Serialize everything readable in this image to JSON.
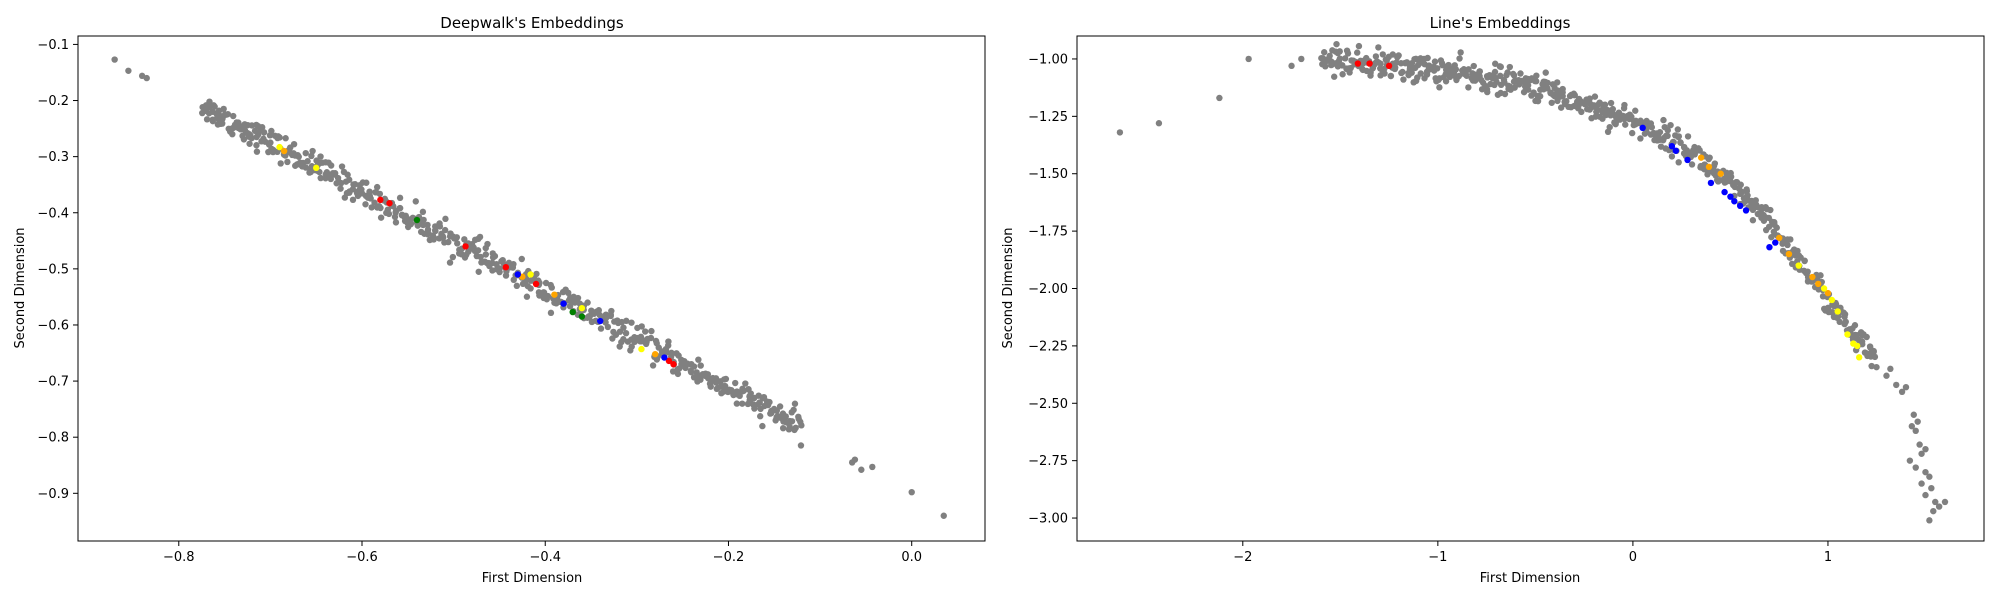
{
  "chart_data": [
    {
      "type": "scatter",
      "title": "Deepwalk's Embeddings",
      "xlabel": "First Dimension",
      "ylabel": "Second Dimension",
      "xlim": [
        -0.91,
        0.08
      ],
      "ylim": [
        -0.985,
        -0.085
      ],
      "xticks": [
        -0.8,
        -0.6,
        -0.4,
        -0.2,
        0.0
      ],
      "xtick_labels": [
        "−0.8",
        "−0.6",
        "−0.4",
        "−0.2",
        "0.0"
      ],
      "yticks": [
        -0.1,
        -0.2,
        -0.3,
        -0.4,
        -0.5,
        -0.6,
        -0.7,
        -0.8,
        -0.9
      ],
      "ytick_labels": [
        "−0.1",
        "−0.2",
        "−0.3",
        "−0.4",
        "−0.5",
        "−0.6",
        "−0.7",
        "−0.8",
        "−0.9"
      ],
      "grid": false,
      "series": [
        {
          "color": "#808080",
          "band": {
            "x_start": -0.775,
            "x_end": -0.12,
            "count": 560,
            "slope": -0.877,
            "intercept": -0.889,
            "noise": 0.012
          },
          "points": [
            [
              -0.87,
              -0.127
            ],
            [
              -0.855,
              -0.147
            ],
            [
              -0.84,
              -0.156
            ],
            [
              -0.835,
              -0.16
            ],
            [
              -0.77,
              -0.215
            ],
            [
              -0.763,
              -0.22
            ],
            [
              -0.758,
              -0.23
            ],
            [
              -0.752,
              -0.23
            ],
            [
              -0.742,
              -0.25
            ],
            [
              -0.73,
              -0.248
            ],
            [
              -0.723,
              -0.26
            ],
            [
              -0.715,
              -0.265
            ],
            [
              -0.7,
              -0.275
            ],
            [
              -0.14,
              -0.772
            ],
            [
              -0.128,
              -0.787
            ],
            [
              -0.065,
              -0.845
            ],
            [
              -0.062,
              -0.84
            ],
            [
              -0.055,
              -0.858
            ],
            [
              -0.043,
              -0.853
            ],
            [
              0.0,
              -0.898
            ],
            [
              0.035,
              -0.94
            ]
          ]
        },
        {
          "color": "#ff0000",
          "points": [
            [
              -0.58,
              -0.377
            ],
            [
              -0.57,
              -0.383
            ],
            [
              -0.487,
              -0.46
            ],
            [
              -0.443,
              -0.497
            ],
            [
              -0.41,
              -0.527
            ],
            [
              -0.265,
              -0.664
            ],
            [
              -0.26,
              -0.67
            ]
          ]
        },
        {
          "color": "#ffff00",
          "points": [
            [
              -0.69,
              -0.283
            ],
            [
              -0.65,
              -0.32
            ],
            [
              -0.416,
              -0.51
            ],
            [
              -0.36,
              -0.57
            ],
            [
              -0.295,
              -0.643
            ]
          ]
        },
        {
          "color": "#ffa500",
          "points": [
            [
              -0.685,
              -0.29
            ],
            [
              -0.425,
              -0.514
            ],
            [
              -0.39,
              -0.546
            ],
            [
              -0.28,
              -0.652
            ]
          ]
        },
        {
          "color": "#008000",
          "points": [
            [
              -0.54,
              -0.413
            ],
            [
              -0.37,
              -0.577
            ],
            [
              -0.36,
              -0.585
            ]
          ]
        },
        {
          "color": "#0000ff",
          "points": [
            [
              -0.43,
              -0.51
            ],
            [
              -0.38,
              -0.562
            ],
            [
              -0.34,
              -0.593
            ],
            [
              -0.27,
              -0.658
            ]
          ]
        }
      ]
    },
    {
      "type": "scatter",
      "title": "Line's Embeddings",
      "xlabel": "First Dimension",
      "ylabel": "Second Dimension",
      "xlim": [
        -2.85,
        1.8
      ],
      "ylim": [
        -3.1,
        -0.9
      ],
      "xticks": [
        -2,
        -1,
        0,
        1
      ],
      "xtick_labels": [
        "−2",
        "−1",
        "0",
        "1"
      ],
      "yticks": [
        -1.0,
        -1.25,
        -1.5,
        -1.75,
        -2.0,
        -2.25,
        -2.5,
        -2.75,
        -3.0
      ],
      "ytick_labels": [
        "−1.00",
        "−1.25",
        "−1.50",
        "−1.75",
        "−2.00",
        "−2.25",
        "−2.50",
        "−2.75",
        "−3.00"
      ],
      "grid": false,
      "series": [
        {
          "color": "#808080",
          "band": {
            "x_start": -1.6,
            "x_end": 1.25,
            "count": 620,
            "curve": [
              [
                -1.6,
                -1.0
              ],
              [
                -1.0,
                -1.05
              ],
              [
                -0.5,
                -1.12
              ],
              [
                0.0,
                -1.27
              ],
              [
                0.3,
                -1.4
              ],
              [
                0.5,
                -1.55
              ],
              [
                0.7,
                -1.72
              ],
              [
                0.85,
                -1.88
              ],
              [
                1.0,
                -2.05
              ],
              [
                1.1,
                -2.17
              ],
              [
                1.25,
                -2.32
              ]
            ],
            "noise": 0.03
          },
          "points": [
            [
              -2.63,
              -1.32
            ],
            [
              -2.43,
              -1.28
            ],
            [
              -2.12,
              -1.17
            ],
            [
              -1.97,
              -1.0
            ],
            [
              -1.75,
              -1.03
            ],
            [
              -1.7,
              -1.0
            ],
            [
              1.3,
              -2.38
            ],
            [
              1.32,
              -2.35
            ],
            [
              1.35,
              -2.42
            ],
            [
              1.38,
              -2.45
            ],
            [
              1.4,
              -2.43
            ],
            [
              1.43,
              -2.6
            ],
            [
              1.45,
              -2.62
            ],
            [
              1.44,
              -2.55
            ],
            [
              1.46,
              -2.58
            ],
            [
              1.47,
              -2.68
            ],
            [
              1.48,
              -2.72
            ],
            [
              1.5,
              -2.7
            ],
            [
              1.42,
              -2.75
            ],
            [
              1.45,
              -2.78
            ],
            [
              1.5,
              -2.8
            ],
            [
              1.52,
              -2.82
            ],
            [
              1.48,
              -2.85
            ],
            [
              1.53,
              -2.87
            ],
            [
              1.5,
              -2.9
            ],
            [
              1.55,
              -2.93
            ],
            [
              1.57,
              -2.95
            ],
            [
              1.54,
              -2.97
            ],
            [
              1.6,
              -2.93
            ],
            [
              1.52,
              -3.01
            ]
          ]
        },
        {
          "color": "#ff0000",
          "points": [
            [
              -1.41,
              -1.02
            ],
            [
              -1.35,
              -1.02
            ],
            [
              -1.25,
              -1.03
            ]
          ]
        },
        {
          "color": "#ffa500",
          "points": [
            [
              0.35,
              -1.43
            ],
            [
              0.39,
              -1.47
            ],
            [
              0.45,
              -1.5
            ],
            [
              0.75,
              -1.78
            ],
            [
              0.8,
              -1.85
            ],
            [
              0.92,
              -1.95
            ],
            [
              0.95,
              -1.98
            ],
            [
              1.0,
              -2.02
            ]
          ]
        },
        {
          "color": "#ffff00",
          "points": [
            [
              0.85,
              -1.9
            ],
            [
              0.98,
              -2.0
            ],
            [
              1.02,
              -2.05
            ],
            [
              1.05,
              -2.1
            ],
            [
              1.1,
              -2.2
            ],
            [
              1.15,
              -2.25
            ],
            [
              1.13,
              -2.24
            ],
            [
              1.16,
              -2.3
            ]
          ]
        },
        {
          "color": "#0000ff",
          "points": [
            [
              0.05,
              -1.3
            ],
            [
              0.2,
              -1.38
            ],
            [
              0.22,
              -1.4
            ],
            [
              0.28,
              -1.44
            ],
            [
              0.4,
              -1.54
            ],
            [
              0.47,
              -1.58
            ],
            [
              0.5,
              -1.6
            ],
            [
              0.52,
              -1.62
            ],
            [
              0.55,
              -1.64
            ],
            [
              0.58,
              -1.66
            ],
            [
              0.7,
              -1.82
            ],
            [
              0.73,
              -1.8
            ]
          ]
        }
      ]
    }
  ]
}
